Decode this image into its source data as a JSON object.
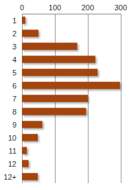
{
  "chart_data": {
    "type": "bar",
    "orientation": "horizontal",
    "categories": [
      "1",
      "2",
      "3",
      "4",
      "5",
      "6",
      "7",
      "8",
      "9",
      "10",
      "11",
      "12",
      "12+"
    ],
    "values": [
      10,
      50,
      168,
      223,
      230,
      298,
      200,
      195,
      62,
      48,
      15,
      20,
      48
    ],
    "color": "#a3440f",
    "xlim": [
      0,
      300
    ],
    "xticks": [
      0,
      100,
      200,
      300
    ],
    "grid": true
  }
}
